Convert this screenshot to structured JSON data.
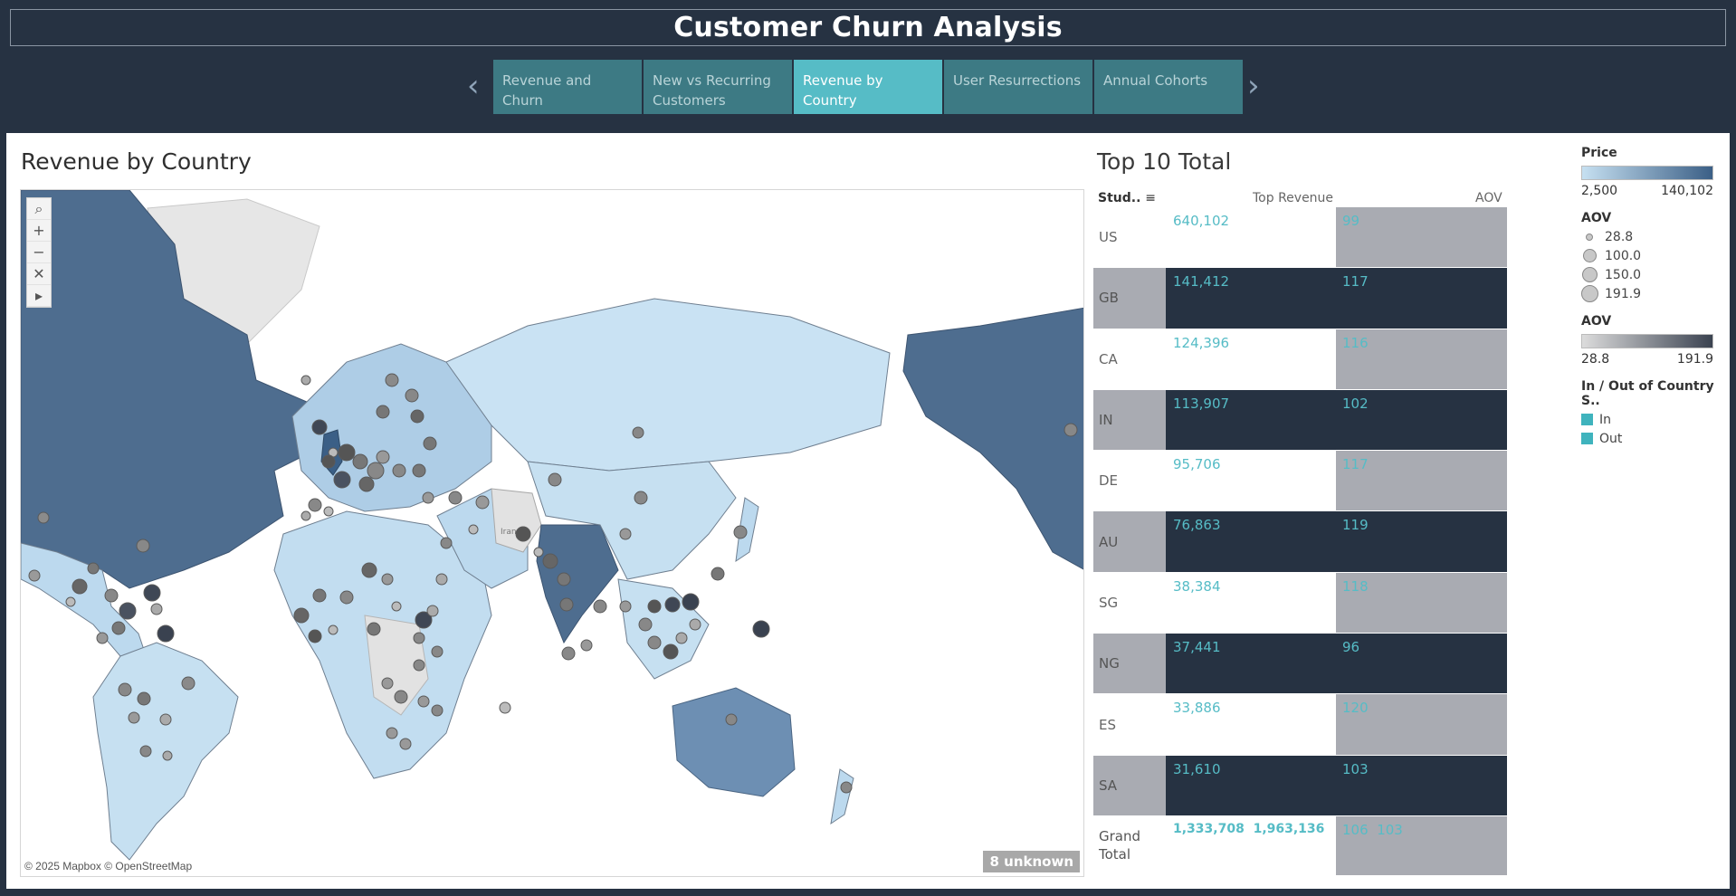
{
  "header": {
    "title": "Customer Churn Analysis"
  },
  "tabs": [
    {
      "line1": "Revenue and Churn",
      "line2": ""
    },
    {
      "line1": "New vs Recurring",
      "line2": "Customers"
    },
    {
      "line1": "Revenue by Country",
      "line2": ""
    },
    {
      "line1": "User Resurrections",
      "line2": ""
    },
    {
      "line1": "Annual Cohorts",
      "line2": ""
    }
  ],
  "active_tab": 2,
  "nav": {
    "prev_icon": "chevron-left-icon",
    "next_icon": "chevron-right-icon"
  },
  "map": {
    "title": "Revenue by Country",
    "attribution": "© 2025 Mapbox © OpenStreetMap",
    "unknown_label": "8 unknown",
    "region_label": "Iran",
    "tools": [
      "search-icon",
      "zoom-in-icon",
      "zoom-out-icon",
      "clear-selection-icon",
      "play-icon"
    ],
    "colors": {
      "water": "#ffffff",
      "land_nodata": "#e6e6e6",
      "ramp_low": "#c6e0f1",
      "ramp_high": "#4e6d8f",
      "dot": "#7d7d7d"
    }
  },
  "table": {
    "title": "Top 10 Total",
    "col_country": "Stud..",
    "col_revenue": "Top Revenue",
    "col_aov": "AOV",
    "rows": [
      {
        "country": "US",
        "revenue": "640,102",
        "aov": "99"
      },
      {
        "country": "GB",
        "revenue": "141,412",
        "aov": "117"
      },
      {
        "country": "CA",
        "revenue": "124,396",
        "aov": "116"
      },
      {
        "country": "IN",
        "revenue": "113,907",
        "aov": "102"
      },
      {
        "country": "DE",
        "revenue": "95,706",
        "aov": "117"
      },
      {
        "country": "AU",
        "revenue": "76,863",
        "aov": "119"
      },
      {
        "country": "SG",
        "revenue": "38,384",
        "aov": "118"
      },
      {
        "country": "NG",
        "revenue": "37,441",
        "aov": "96"
      },
      {
        "country": "ES",
        "revenue": "33,886",
        "aov": "120"
      },
      {
        "country": "SA",
        "revenue": "31,610",
        "aov": "103"
      }
    ],
    "grand": {
      "label_line1": "Grand",
      "label_line2": "Total",
      "revenue_in": "1,333,708",
      "revenue_out": "1,963,136",
      "aov_in": "106",
      "aov_out": "103"
    }
  },
  "legend": {
    "price": {
      "title": "Price",
      "min": "2,500",
      "max": "140,102",
      "low_color": "#c6e0f1",
      "high_color": "#3b5f86"
    },
    "aov_size": {
      "title": "AOV",
      "items": [
        "28.8",
        "100.0",
        "150.0",
        "191.9"
      ]
    },
    "aov_color": {
      "title": "AOV",
      "min": "28.8",
      "max": "191.9",
      "low_color": "#dcdcdc",
      "high_color": "#3a4250"
    },
    "in_out": {
      "title": "In / Out of Country S..",
      "items": [
        "In",
        "Out"
      ],
      "color": "#3fb3bd"
    }
  }
}
